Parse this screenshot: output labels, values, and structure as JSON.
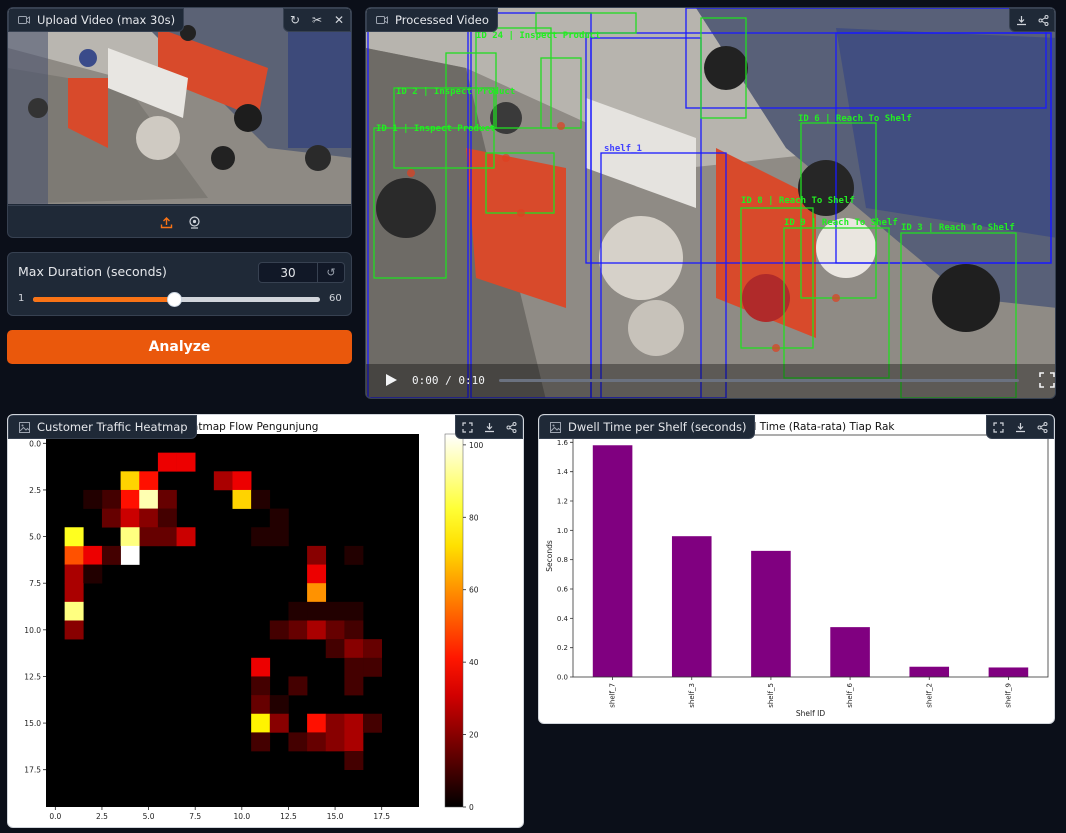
{
  "upload": {
    "title": "Upload Video (max 30s)",
    "icons": [
      "video-icon",
      "undo-icon",
      "scissors-icon",
      "close-icon",
      "upload-icon",
      "webcam-icon"
    ]
  },
  "duration": {
    "label": "Max Duration (seconds)",
    "value": "30",
    "min": "1",
    "max": "60",
    "fraction": 0.4915
  },
  "analyze": {
    "label": "Analyze"
  },
  "processed": {
    "title": "Processed Video",
    "time": "0:00 / 0:10",
    "icons": [
      "download-icon",
      "share-icon",
      "play-icon",
      "fullscreen-icon"
    ],
    "overlay_labels": [
      "ID 2 | Inspect Product",
      "ID 1 | Inspect Product",
      "ID 24 | Inspect Product",
      "shelf_1",
      "ID 6 | Reach To Shelf",
      "ID 8 | Reach To Shelf",
      "ID 9 | Reach To Shelf",
      "ID 3 | Reach To Shelf"
    ]
  },
  "heatmap_panel": {
    "title": "Customer Traffic Heatmap",
    "icons": [
      "image-icon",
      "fullscreen-icon",
      "download-icon",
      "share-icon"
    ]
  },
  "dwell_panel": {
    "title": "Dwell Time per Shelf (seconds)",
    "icons": [
      "image-icon",
      "fullscreen-icon",
      "download-icon",
      "share-icon"
    ]
  },
  "chart_data": [
    {
      "type": "heatmap",
      "title": "Heatmap Flow Pengunjung",
      "grid_size": [
        20,
        20
      ],
      "x_ticks": [
        "0.0",
        "2.5",
        "5.0",
        "7.5",
        "10.0",
        "12.5",
        "15.0",
        "17.5"
      ],
      "y_ticks": [
        "0.0",
        "2.5",
        "5.0",
        "7.5",
        "10.0",
        "12.5",
        "15.0",
        "17.5"
      ],
      "colorbar_ticks": [
        "0",
        "20",
        "40",
        "60",
        "80",
        "100"
      ],
      "vmin": 0,
      "vmax": 103,
      "colormap": "hot",
      "cells": [
        [
          1,
          6,
          50
        ],
        [
          2,
          6,
          35
        ],
        [
          4,
          2,
          70
        ],
        [
          5,
          2,
          40
        ],
        [
          6,
          1,
          35
        ],
        [
          7,
          1,
          35
        ],
        [
          4,
          3,
          40
        ],
        [
          5,
          3,
          95
        ],
        [
          6,
          3,
          15
        ],
        [
          3,
          3,
          10
        ],
        [
          2,
          3,
          5
        ],
        [
          9,
          2,
          25
        ],
        [
          10,
          2,
          35
        ],
        [
          10,
          3,
          70
        ],
        [
          11,
          3,
          5
        ],
        [
          3,
          4,
          15
        ],
        [
          4,
          4,
          30
        ],
        [
          5,
          4,
          20
        ],
        [
          6,
          4,
          10
        ],
        [
          5,
          5,
          15
        ],
        [
          6,
          5,
          15
        ],
        [
          7,
          5,
          30
        ],
        [
          4,
          5,
          90
        ],
        [
          4,
          6,
          103
        ],
        [
          3,
          6,
          10
        ],
        [
          1,
          5,
          80
        ],
        [
          1,
          7,
          25
        ],
        [
          2,
          7,
          5
        ],
        [
          1,
          8,
          25
        ],
        [
          1,
          9,
          90
        ],
        [
          1,
          10,
          20
        ],
        [
          11,
          5,
          5
        ],
        [
          12,
          4,
          5
        ],
        [
          12,
          5,
          5
        ],
        [
          14,
          6,
          20
        ],
        [
          16,
          6,
          5
        ],
        [
          14,
          7,
          35
        ],
        [
          14,
          8,
          60
        ],
        [
          13,
          9,
          5
        ],
        [
          14,
          9,
          5
        ],
        [
          15,
          9,
          5
        ],
        [
          16,
          9,
          5
        ],
        [
          13,
          10,
          15
        ],
        [
          14,
          10,
          25
        ],
        [
          15,
          10,
          15
        ],
        [
          16,
          10,
          10
        ],
        [
          12,
          10,
          10
        ],
        [
          15,
          11,
          10
        ],
        [
          16,
          11,
          20
        ],
        [
          17,
          11,
          15
        ],
        [
          11,
          12,
          35
        ],
        [
          16,
          12,
          10
        ],
        [
          17,
          12,
          10
        ],
        [
          11,
          13,
          10
        ],
        [
          13,
          13,
          10
        ],
        [
          16,
          13,
          10
        ],
        [
          11,
          14,
          15
        ],
        [
          12,
          14,
          5
        ],
        [
          11,
          15,
          75
        ],
        [
          12,
          15,
          20
        ],
        [
          14,
          15,
          40
        ],
        [
          15,
          15,
          20
        ],
        [
          16,
          15,
          25
        ],
        [
          17,
          15,
          10
        ],
        [
          11,
          16,
          10
        ],
        [
          13,
          16,
          10
        ],
        [
          14,
          16,
          15
        ],
        [
          15,
          16,
          20
        ],
        [
          16,
          16,
          25
        ],
        [
          16,
          17,
          10
        ]
      ]
    },
    {
      "type": "bar",
      "title": "Dwell Time (Rata-rata) Tiap Rak",
      "xlabel": "Shelf ID",
      "ylabel": "Seconds",
      "categories": [
        "shelf_7",
        "shelf_3",
        "shelf_5",
        "shelf_6",
        "shelf_2",
        "shelf_9"
      ],
      "values": [
        1.58,
        0.96,
        0.86,
        0.34,
        0.07,
        0.065
      ],
      "ylim": [
        0,
        1.65
      ],
      "y_ticks": [
        "0.0",
        "0.2",
        "0.4",
        "0.6",
        "0.8",
        "1.0",
        "1.2",
        "1.4",
        "1.6"
      ],
      "bar_color": "#800080"
    }
  ]
}
